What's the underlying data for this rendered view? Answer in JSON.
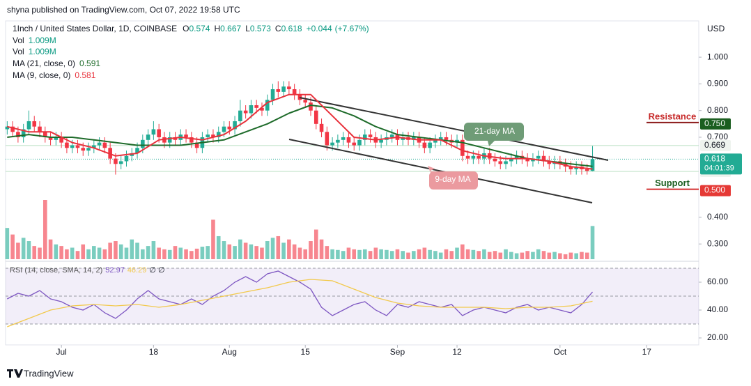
{
  "chart_data": {
    "type": "candlestick",
    "published": "shyna published on TradingView.com, Oct 07, 2022 19:58 UTC",
    "symbol": "1Inch / United States Dollar, 1D, COINBASE",
    "ohlc_letters": [
      "O",
      "H",
      "L",
      "C"
    ],
    "change": {
      "value": 0.044,
      "label": "+0.044"
    },
    "change_pct": {
      "value": 7.67,
      "label": "(+7.67%)"
    },
    "y_axis_label": "USD",
    "footer": "TradingView",
    "xlim": [
      -0.3,
      127.6
    ],
    "xticks": [
      {
        "value": 10,
        "label": "Jul"
      },
      {
        "value": 27,
        "label": "18"
      },
      {
        "value": 41,
        "label": "Aug"
      },
      {
        "value": 55,
        "label": "15"
      },
      {
        "value": 72,
        "label": "Sep"
      },
      {
        "value": 83,
        "label": "12"
      },
      {
        "value": 102,
        "label": "Oct"
      },
      {
        "value": 118,
        "label": "17"
      }
    ],
    "ylim": [
      0.243,
      1.136
    ],
    "yticks": [
      {
        "value": 0.3,
        "label": "0.300"
      },
      {
        "value": 0.4,
        "label": "0.400"
      },
      {
        "value": 0.7,
        "label": "0.700"
      },
      {
        "value": 0.8,
        "label": "0.800"
      },
      {
        "value": 0.9,
        "label": "0.900"
      },
      {
        "value": 1.0,
        "label": "1.000"
      }
    ],
    "candles": {
      "up_color": "#22ab94",
      "down_color": "#f23645",
      "open": [
        0.73,
        0.74,
        0.72,
        0.7,
        0.73,
        0.76,
        0.74,
        0.72,
        0.7,
        0.69,
        0.7,
        0.68,
        0.66,
        0.67,
        0.66,
        0.65,
        0.66,
        0.67,
        0.68,
        0.66,
        0.62,
        0.6,
        0.61,
        0.63,
        0.64,
        0.66,
        0.69,
        0.71,
        0.73,
        0.7,
        0.68,
        0.7,
        0.69,
        0.71,
        0.7,
        0.68,
        0.66,
        0.7,
        0.71,
        0.7,
        0.72,
        0.74,
        0.73,
        0.76,
        0.8,
        0.79,
        0.82,
        0.81,
        0.8,
        0.84,
        0.88,
        0.87,
        0.89,
        0.88,
        0.86,
        0.84,
        0.83,
        0.8,
        0.75,
        0.72,
        0.67,
        0.68,
        0.69,
        0.7,
        0.68,
        0.67,
        0.69,
        0.71,
        0.7,
        0.68,
        0.69,
        0.7,
        0.71,
        0.69,
        0.7,
        0.69,
        0.7,
        0.68,
        0.66,
        0.68,
        0.69,
        0.7,
        0.69,
        0.68,
        0.69,
        0.63,
        0.62,
        0.63,
        0.62,
        0.64,
        0.62,
        0.61,
        0.6,
        0.61,
        0.62,
        0.63,
        0.62,
        0.61,
        0.62,
        0.63,
        0.61,
        0.6,
        0.61,
        0.6,
        0.59,
        0.58,
        0.59,
        0.58,
        0.574
      ],
      "high": [
        0.76,
        0.76,
        0.74,
        0.75,
        0.8,
        0.78,
        0.76,
        0.74,
        0.72,
        0.72,
        0.72,
        0.7,
        0.69,
        0.69,
        0.68,
        0.68,
        0.69,
        0.7,
        0.7,
        0.68,
        0.64,
        0.63,
        0.65,
        0.66,
        0.68,
        0.71,
        0.73,
        0.76,
        0.75,
        0.72,
        0.72,
        0.72,
        0.73,
        0.73,
        0.72,
        0.7,
        0.72,
        0.73,
        0.73,
        0.74,
        0.76,
        0.76,
        0.78,
        0.84,
        0.82,
        0.84,
        0.84,
        0.83,
        0.86,
        0.9,
        0.91,
        0.91,
        0.91,
        0.9,
        0.88,
        0.86,
        0.85,
        0.82,
        0.77,
        0.74,
        0.7,
        0.71,
        0.72,
        0.72,
        0.7,
        0.71,
        0.73,
        0.73,
        0.72,
        0.71,
        0.72,
        0.73,
        0.73,
        0.72,
        0.72,
        0.72,
        0.72,
        0.7,
        0.7,
        0.71,
        0.72,
        0.72,
        0.71,
        0.71,
        0.71,
        0.65,
        0.65,
        0.65,
        0.66,
        0.66,
        0.64,
        0.63,
        0.63,
        0.64,
        0.65,
        0.65,
        0.64,
        0.64,
        0.65,
        0.65,
        0.63,
        0.63,
        0.63,
        0.62,
        0.61,
        0.61,
        0.61,
        0.6,
        0.667
      ],
      "low": [
        0.71,
        0.7,
        0.68,
        0.68,
        0.71,
        0.72,
        0.7,
        0.68,
        0.67,
        0.67,
        0.66,
        0.64,
        0.64,
        0.64,
        0.63,
        0.63,
        0.64,
        0.65,
        0.64,
        0.6,
        0.56,
        0.58,
        0.59,
        0.61,
        0.62,
        0.64,
        0.67,
        0.69,
        0.68,
        0.66,
        0.66,
        0.67,
        0.67,
        0.68,
        0.66,
        0.64,
        0.64,
        0.68,
        0.68,
        0.68,
        0.7,
        0.71,
        0.71,
        0.74,
        0.77,
        0.77,
        0.79,
        0.78,
        0.78,
        0.82,
        0.85,
        0.85,
        0.86,
        0.84,
        0.82,
        0.81,
        0.78,
        0.73,
        0.7,
        0.65,
        0.65,
        0.66,
        0.67,
        0.66,
        0.65,
        0.65,
        0.67,
        0.68,
        0.66,
        0.66,
        0.67,
        0.68,
        0.67,
        0.67,
        0.67,
        0.67,
        0.66,
        0.64,
        0.64,
        0.66,
        0.67,
        0.67,
        0.66,
        0.66,
        0.61,
        0.6,
        0.6,
        0.6,
        0.6,
        0.6,
        0.59,
        0.58,
        0.58,
        0.59,
        0.6,
        0.6,
        0.59,
        0.59,
        0.6,
        0.59,
        0.58,
        0.58,
        0.58,
        0.57,
        0.56,
        0.56,
        0.56,
        0.56,
        0.573
      ],
      "close": [
        0.74,
        0.72,
        0.7,
        0.73,
        0.76,
        0.74,
        0.72,
        0.7,
        0.69,
        0.7,
        0.68,
        0.66,
        0.67,
        0.66,
        0.65,
        0.66,
        0.67,
        0.68,
        0.66,
        0.62,
        0.6,
        0.61,
        0.63,
        0.64,
        0.66,
        0.69,
        0.71,
        0.73,
        0.7,
        0.68,
        0.7,
        0.69,
        0.71,
        0.7,
        0.68,
        0.66,
        0.7,
        0.71,
        0.7,
        0.72,
        0.74,
        0.73,
        0.76,
        0.8,
        0.79,
        0.82,
        0.81,
        0.8,
        0.84,
        0.88,
        0.87,
        0.89,
        0.88,
        0.86,
        0.84,
        0.83,
        0.8,
        0.75,
        0.72,
        0.67,
        0.68,
        0.69,
        0.7,
        0.68,
        0.67,
        0.69,
        0.71,
        0.7,
        0.68,
        0.69,
        0.7,
        0.71,
        0.69,
        0.7,
        0.69,
        0.7,
        0.68,
        0.66,
        0.68,
        0.69,
        0.7,
        0.69,
        0.68,
        0.69,
        0.63,
        0.62,
        0.63,
        0.62,
        0.64,
        0.62,
        0.61,
        0.6,
        0.61,
        0.62,
        0.63,
        0.62,
        0.61,
        0.62,
        0.63,
        0.61,
        0.6,
        0.61,
        0.6,
        0.59,
        0.58,
        0.59,
        0.58,
        0.574,
        0.618
      ]
    },
    "volume": {
      "name": "Vol",
      "last_label": "1.009M",
      "values": [
        0.95,
        0.75,
        0.5,
        0.65,
        0.55,
        0.4,
        0.35,
        1.8,
        0.6,
        0.45,
        0.4,
        0.3,
        0.35,
        0.25,
        0.45,
        0.3,
        0.4,
        0.35,
        0.3,
        0.5,
        0.55,
        0.45,
        0.35,
        0.6,
        0.5,
        0.3,
        0.4,
        0.55,
        0.35,
        0.3,
        0.28,
        0.4,
        0.35,
        0.3,
        0.25,
        0.32,
        0.38,
        0.4,
        1.2,
        0.7,
        0.55,
        0.45,
        0.4,
        0.6,
        0.5,
        0.45,
        0.4,
        0.35,
        0.55,
        0.65,
        0.7,
        0.5,
        0.6,
        0.45,
        0.35,
        0.3,
        0.55,
        0.9,
        0.6,
        0.4,
        0.3,
        0.28,
        0.25,
        0.35,
        0.3,
        0.28,
        0.3,
        0.25,
        0.35,
        0.3,
        0.28,
        0.25,
        0.3,
        0.25,
        0.2,
        0.25,
        0.3,
        0.35,
        0.28,
        0.25,
        0.2,
        0.3,
        0.25,
        0.35,
        0.45,
        0.3,
        0.28,
        0.25,
        0.3,
        0.22,
        0.25,
        0.2,
        0.3,
        0.22,
        0.18,
        0.2,
        0.25,
        0.22,
        0.3,
        0.25,
        0.2,
        0.22,
        0.18,
        0.15,
        0.2,
        0.18,
        0.22,
        0.2,
        1.009
      ]
    },
    "ma": [
      {
        "name": "MA (21, close, 0)",
        "color": "#1e6b2a",
        "x": [
          0,
          4,
          8,
          12,
          16,
          20,
          24,
          28,
          32,
          36,
          40,
          44,
          48,
          52,
          56,
          60,
          64,
          68,
          72,
          76,
          80,
          84,
          88,
          92,
          96,
          100,
          104,
          108
        ],
        "values": [
          0.7,
          0.71,
          0.7,
          0.7,
          0.69,
          0.68,
          0.67,
          0.67,
          0.67,
          0.68,
          0.69,
          0.72,
          0.75,
          0.79,
          0.82,
          0.81,
          0.78,
          0.74,
          0.71,
          0.7,
          0.69,
          0.68,
          0.66,
          0.64,
          0.62,
          0.61,
          0.6,
          0.591
        ]
      },
      {
        "name": "MA (9, close, 0)",
        "color": "#e8323c",
        "x": [
          0,
          4,
          8,
          12,
          16,
          20,
          24,
          28,
          32,
          36,
          40,
          44,
          48,
          52,
          56,
          60,
          64,
          68,
          72,
          76,
          80,
          84,
          88,
          92,
          96,
          100,
          104,
          108
        ],
        "values": [
          0.74,
          0.72,
          0.72,
          0.68,
          0.66,
          0.63,
          0.64,
          0.69,
          0.7,
          0.69,
          0.71,
          0.76,
          0.83,
          0.86,
          0.86,
          0.78,
          0.7,
          0.69,
          0.7,
          0.69,
          0.69,
          0.65,
          0.63,
          0.62,
          0.62,
          0.61,
          0.59,
          0.581
        ]
      }
    ],
    "countdown": "04:01:39",
    "levels": [
      {
        "value": 0.75,
        "label": "0.750",
        "color": "#1b5e20",
        "badge_text": "#ffffff",
        "text": "Resistance",
        "text_color": "#c62828",
        "line_color": "#8b1a1a"
      },
      {
        "value": 0.669,
        "color": "#eef3ee",
        "badge_text": "#131722",
        "line_color": "#b9dfc2"
      },
      {
        "value": 0.572,
        "color": "#eef3ee",
        "badge_text": "#131722",
        "line_color": "#b9dfc2"
      },
      {
        "value": 0.5,
        "label": "0.500",
        "color": "#e53935",
        "badge_text": "#ffffff",
        "text": "Support",
        "text_color": "#1b5e20",
        "line_color": "#d32f2f"
      }
    ],
    "annotations": [
      "21-day MA",
      "9-day MA"
    ],
    "rsi": {
      "title": "RSI (14, close, SMA, 14, 2)",
      "extra": "∅ ∅",
      "ylim": [
        15,
        73.5
      ],
      "yticks": [
        {
          "value": 60,
          "label": "60.00"
        },
        {
          "value": 40,
          "label": "40.00"
        },
        {
          "value": 20,
          "label": "20.00"
        }
      ],
      "levels": [
        70,
        50,
        30
      ],
      "series": [
        {
          "color": "#7e57c2",
          "x": [
            0,
            2,
            4,
            6,
            8,
            10,
            12,
            14,
            16,
            18,
            20,
            22,
            24,
            26,
            28,
            30,
            32,
            34,
            36,
            38,
            40,
            42,
            44,
            46,
            48,
            50,
            52,
            54,
            56,
            58,
            60,
            62,
            64,
            66,
            68,
            70,
            72,
            74,
            76,
            78,
            80,
            82,
            84,
            86,
            88,
            90,
            92,
            94,
            96,
            98,
            100,
            102,
            104,
            106,
            108
          ],
          "values": [
            48,
            52,
            50,
            54,
            48,
            46,
            42,
            40,
            44,
            38,
            34,
            40,
            48,
            54,
            48,
            46,
            44,
            48,
            44,
            50,
            54,
            60,
            64,
            60,
            66,
            68,
            64,
            60,
            55,
            42,
            36,
            40,
            44,
            46,
            40,
            36,
            44,
            42,
            46,
            44,
            42,
            44,
            36,
            40,
            42,
            40,
            38,
            42,
            44,
            40,
            42,
            40,
            38,
            44,
            52.97
          ]
        },
        {
          "color": "#f2c94c",
          "x": [
            0,
            4,
            8,
            12,
            16,
            20,
            24,
            28,
            32,
            36,
            40,
            44,
            48,
            52,
            56,
            60,
            64,
            68,
            72,
            76,
            80,
            84,
            88,
            92,
            96,
            100,
            104,
            108
          ],
          "values": [
            28,
            34,
            40,
            43,
            44,
            43,
            44,
            42,
            44,
            47,
            50,
            53,
            56,
            60,
            62,
            61,
            55,
            49,
            45,
            43,
            42,
            42,
            42,
            41,
            42,
            42,
            43,
            46.29
          ]
        }
      ]
    }
  }
}
